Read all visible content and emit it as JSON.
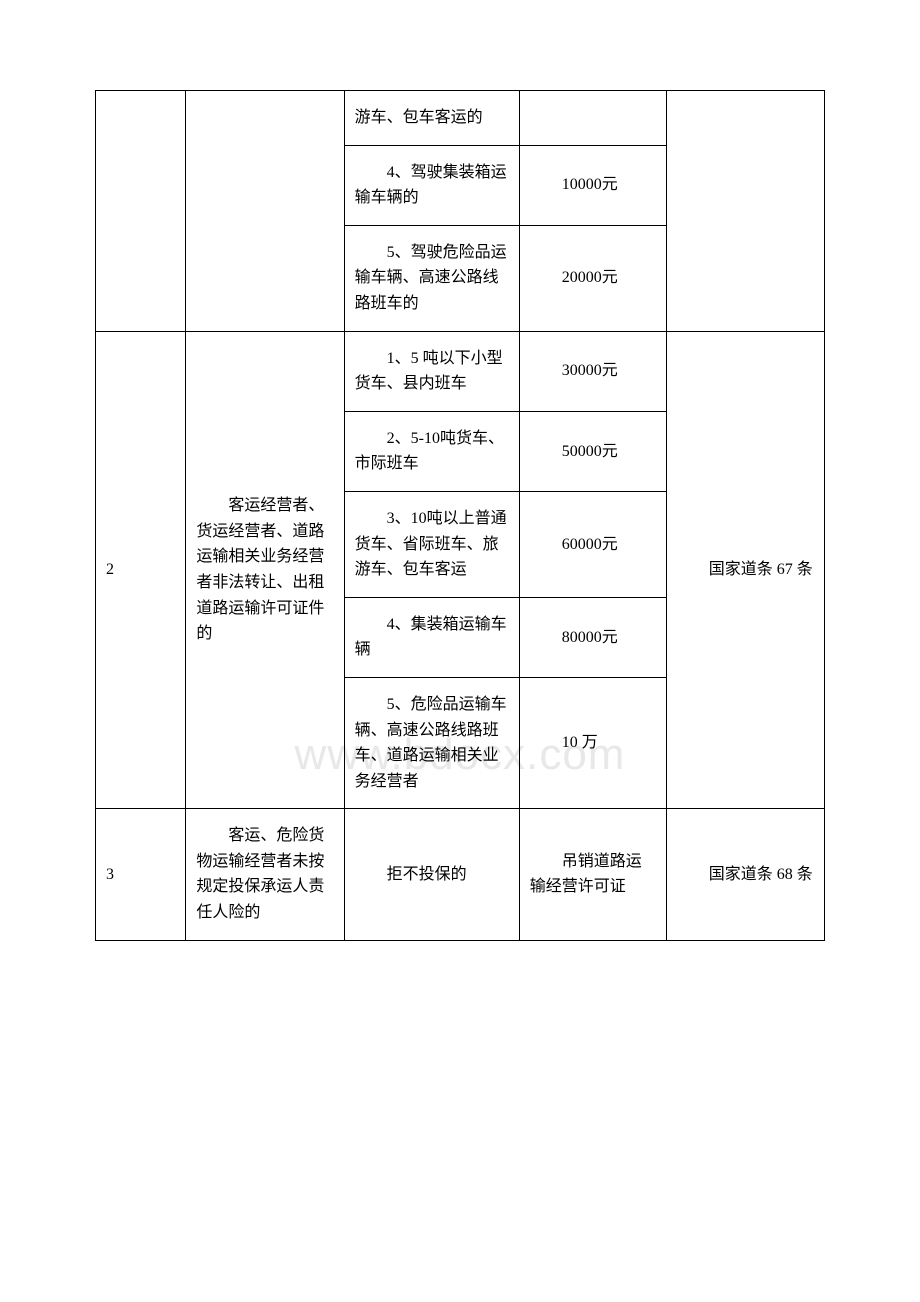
{
  "watermark": "www.bdocx.com",
  "table": {
    "border_color": "#000000",
    "background_color": "#ffffff",
    "text_color": "#000000",
    "font_size": 16,
    "columns": [
      "col-num",
      "col-desc",
      "col-detail",
      "col-penalty",
      "col-law"
    ],
    "rows_section1": {
      "row1": {
        "detail": "游车、包车客运的",
        "penalty": ""
      },
      "row2": {
        "detail": "　　4、驾驶集装箱运输车辆的",
        "penalty": "　　10000元"
      },
      "row3": {
        "detail": "　　5、驾驶危险品运输车辆、高速公路线路班车的",
        "penalty": "　　20000元"
      }
    },
    "rows_section2": {
      "num": "2",
      "desc": "　　客运经营者、货运经营者、道路运输相关业务经营者非法转让、出租道路运输许可证件的",
      "law": "　　国家道条 67 条",
      "row1": {
        "detail": "　　1、5 吨以下小型货车、县内班车",
        "penalty": "　　30000元"
      },
      "row2": {
        "detail": "　　2、5-10吨货车、市际班车",
        "penalty": "　　50000元"
      },
      "row3": {
        "detail": "　　3、10吨以上普通货车、省际班车、旅游车、包车客运",
        "penalty": "　　60000元"
      },
      "row4": {
        "detail": "　　4、集装箱运输车辆",
        "penalty": "　　80000元"
      },
      "row5": {
        "detail": "　　5、危险品运输车辆、高速公路线路班车、道路运输相关业务经营者",
        "penalty": "　　10 万"
      }
    },
    "rows_section3": {
      "num": "3",
      "desc": "　　客运、危险货物运输经营者未按规定投保承运人责任人险的",
      "detail": "　　拒不投保的",
      "penalty": "　　吊销道路运输经营许可证",
      "law": "　　国家道条 68 条"
    }
  }
}
